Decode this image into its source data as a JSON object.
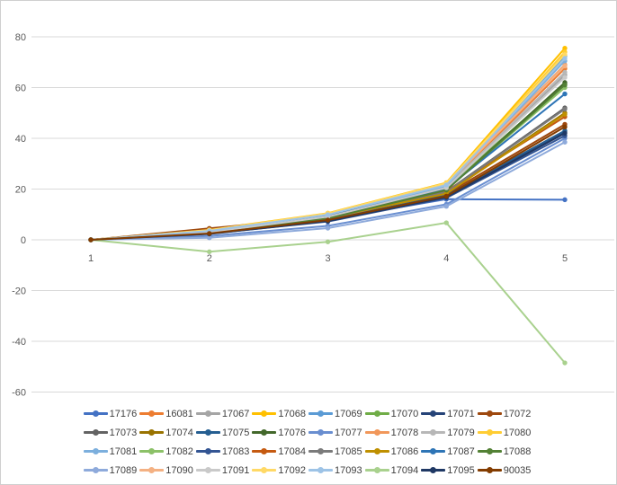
{
  "window": {
    "background": "#ffffff",
    "border_color": "#cfcfcf"
  },
  "chart_data": {
    "type": "line",
    "x_tick_labels": [
      "1",
      "2",
      "3",
      "4",
      "5"
    ],
    "y_ticks": [
      80,
      60,
      40,
      20,
      0,
      -20,
      -40,
      -60
    ],
    "ylim": [
      -65,
      85
    ],
    "grid": true,
    "legend_position": "bottom",
    "gridline_color": "#d9d9d9",
    "axis_label_color": "#595959",
    "legend_label_color": "#404040",
    "marker_style": "circle",
    "series": [
      {
        "name": "17176",
        "color": "#4472C4",
        "values": [
          0,
          2.5,
          8.0,
          16.0,
          15.8
        ]
      },
      {
        "name": "16081",
        "color": "#ED7D31",
        "values": [
          0,
          3.5,
          9.5,
          21.0,
          67.5
        ]
      },
      {
        "name": "17067",
        "color": "#A5A5A5",
        "values": [
          0,
          3.0,
          9.0,
          20.0,
          65.0
        ]
      },
      {
        "name": "17068",
        "color": "#FFC000",
        "values": [
          0,
          4.0,
          10.5,
          22.5,
          75.5
        ]
      },
      {
        "name": "17069",
        "color": "#5B9BD5",
        "values": [
          0,
          3.5,
          10.0,
          22.0,
          72.5
        ]
      },
      {
        "name": "17070",
        "color": "#70AD47",
        "values": [
          0,
          3.0,
          9.0,
          20.5,
          61.5
        ]
      },
      {
        "name": "17071",
        "color": "#264478",
        "values": [
          0,
          2.5,
          7.5,
          17.0,
          42.5
        ]
      },
      {
        "name": "17072",
        "color": "#9E480E",
        "values": [
          0,
          4.5,
          9.0,
          18.0,
          45.5
        ]
      },
      {
        "name": "17073",
        "color": "#636363",
        "values": [
          0,
          2.8,
          8.5,
          19.0,
          52.0
        ]
      },
      {
        "name": "17074",
        "color": "#997300",
        "values": [
          0,
          3.2,
          8.8,
          18.5,
          50.0
        ]
      },
      {
        "name": "17075",
        "color": "#255E91",
        "values": [
          0,
          2.6,
          8.0,
          17.5,
          43.0
        ]
      },
      {
        "name": "17076",
        "color": "#43682B",
        "values": [
          0,
          3.0,
          8.6,
          19.5,
          62.0
        ]
      },
      {
        "name": "17077",
        "color": "#698ED0",
        "values": [
          0,
          1.5,
          5.5,
          14.0,
          40.0
        ]
      },
      {
        "name": "17078",
        "color": "#F1975A",
        "values": [
          0,
          3.6,
          9.8,
          21.5,
          69.0
        ]
      },
      {
        "name": "17079",
        "color": "#B7B7B7",
        "values": [
          0,
          3.1,
          9.2,
          20.8,
          66.0
        ]
      },
      {
        "name": "17080",
        "color": "#FFCD33",
        "values": [
          0,
          3.9,
          10.2,
          22.0,
          74.0
        ]
      },
      {
        "name": "17081",
        "color": "#7CAFDD",
        "values": [
          0,
          3.4,
          9.6,
          21.2,
          70.5
        ]
      },
      {
        "name": "17082",
        "color": "#8CC168",
        "values": [
          0,
          2.9,
          8.4,
          19.8,
          60.0
        ]
      },
      {
        "name": "17083",
        "color": "#335593",
        "values": [
          0,
          2.4,
          7.2,
          16.5,
          41.0
        ]
      },
      {
        "name": "17084",
        "color": "#C55A11",
        "values": [
          0,
          3.3,
          9.0,
          19.2,
          48.5
        ]
      },
      {
        "name": "17085",
        "color": "#7B7B7B",
        "values": [
          0,
          2.7,
          8.2,
          18.8,
          51.5
        ]
      },
      {
        "name": "17086",
        "color": "#BF9000",
        "values": [
          0,
          3.0,
          8.7,
          18.2,
          49.5
        ]
      },
      {
        "name": "17087",
        "color": "#2E75B6",
        "values": [
          0,
          3.2,
          9.4,
          20.2,
          57.5
        ]
      },
      {
        "name": "17088",
        "color": "#538135",
        "values": [
          0,
          2.8,
          8.5,
          19.6,
          61.0
        ]
      },
      {
        "name": "17089",
        "color": "#8EAADB",
        "values": [
          0,
          0.8,
          4.6,
          13.2,
          38.5
        ]
      },
      {
        "name": "17090",
        "color": "#F4B183",
        "values": [
          0,
          3.7,
          10.0,
          21.8,
          68.5
        ]
      },
      {
        "name": "17091",
        "color": "#C9C9C9",
        "values": [
          0,
          3.0,
          9.1,
          20.5,
          64.0
        ]
      },
      {
        "name": "17092",
        "color": "#FFD966",
        "values": [
          0,
          3.8,
          10.4,
          22.3,
          73.0
        ]
      },
      {
        "name": "17093",
        "color": "#9DC3E6",
        "values": [
          0,
          3.5,
          9.9,
          21.6,
          71.5
        ]
      },
      {
        "name": "17094",
        "color": "#A9D18E",
        "values": [
          0,
          -4.7,
          -0.8,
          6.7,
          -48.5
        ]
      },
      {
        "name": "17095",
        "color": "#1F3864",
        "values": [
          0,
          2.3,
          7.4,
          16.8,
          42.0
        ]
      },
      {
        "name": "90035",
        "color": "#833C00",
        "values": [
          0,
          2.5,
          7.8,
          17.2,
          44.5
        ]
      }
    ]
  }
}
